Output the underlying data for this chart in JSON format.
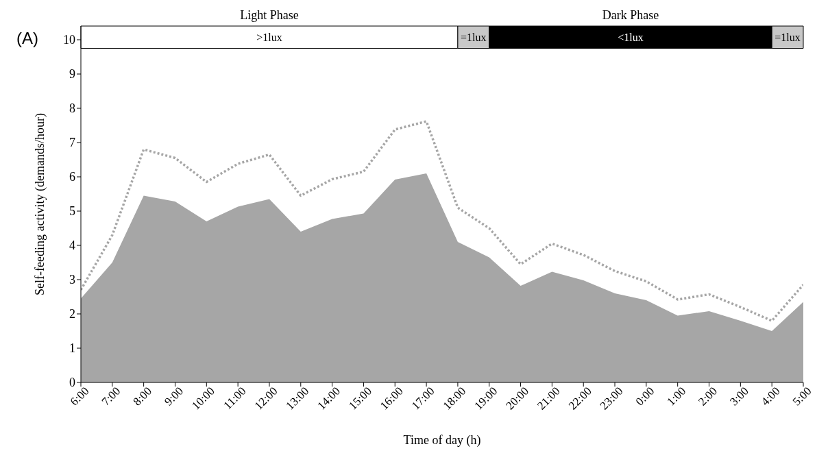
{
  "chart_data": {
    "type": "area",
    "xlabel": "Time of day (h)",
    "ylabel": "Self-feeding activity (demands/hour)",
    "annotations": [
      "(A)",
      "Light Phase",
      "Dark Phase"
    ],
    "categories": [
      "6:00",
      "7:00",
      "8:00",
      "9:00",
      "10:00",
      "11:00",
      "12:00",
      "13:00",
      "14:00",
      "15:00",
      "16:00",
      "17:00",
      "18:00",
      "19:00",
      "20:00",
      "21:00",
      "22:00",
      "23:00",
      "0:00",
      "1:00",
      "2:00",
      "3:00",
      "4:00",
      "5:00"
    ],
    "series": [
      {
        "color": "#a6a6a6",
        "values": [
          2.45,
          3.5,
          5.45,
          5.28,
          4.7,
          5.13,
          5.35,
          4.4,
          4.77,
          4.93,
          5.92,
          6.1,
          4.1,
          3.65,
          2.82,
          3.23,
          2.98,
          2.6,
          2.4,
          1.95,
          2.08,
          1.8,
          1.5,
          2.35
        ]
      },
      {
        "type": "line",
        "color": "#a6a6a6",
        "line_style": "dotted",
        "values": [
          2.7,
          4.3,
          6.8,
          6.55,
          5.85,
          6.38,
          6.65,
          5.45,
          5.93,
          6.15,
          7.38,
          7.62,
          5.1,
          4.5,
          3.45,
          4.05,
          3.72,
          3.25,
          2.95,
          2.42,
          2.57,
          2.2,
          1.8,
          2.85
        ]
      }
    ],
    "bands": [
      {
        "axis": "x",
        "from": "6:00",
        "to": "18:00",
        "label": ">1lux",
        "color": "#ffffff"
      },
      {
        "axis": "x",
        "from": "18:00",
        "to": "19:00",
        "label": "=1lux",
        "color": "#c8c8c8"
      },
      {
        "axis": "x",
        "from": "19:00",
        "to": "4:00",
        "label": "<1lux",
        "color": "#000000"
      },
      {
        "axis": "x",
        "from": "4:00",
        "to": "5:00",
        "label": "=1lux",
        "color": "#c8c8c8"
      }
    ],
    "ylim": [
      0,
      10.4
    ],
    "yticks": [
      0,
      1,
      2,
      3,
      4,
      5,
      6,
      7,
      8,
      9,
      10
    ],
    "grid": false,
    "legend": false
  }
}
